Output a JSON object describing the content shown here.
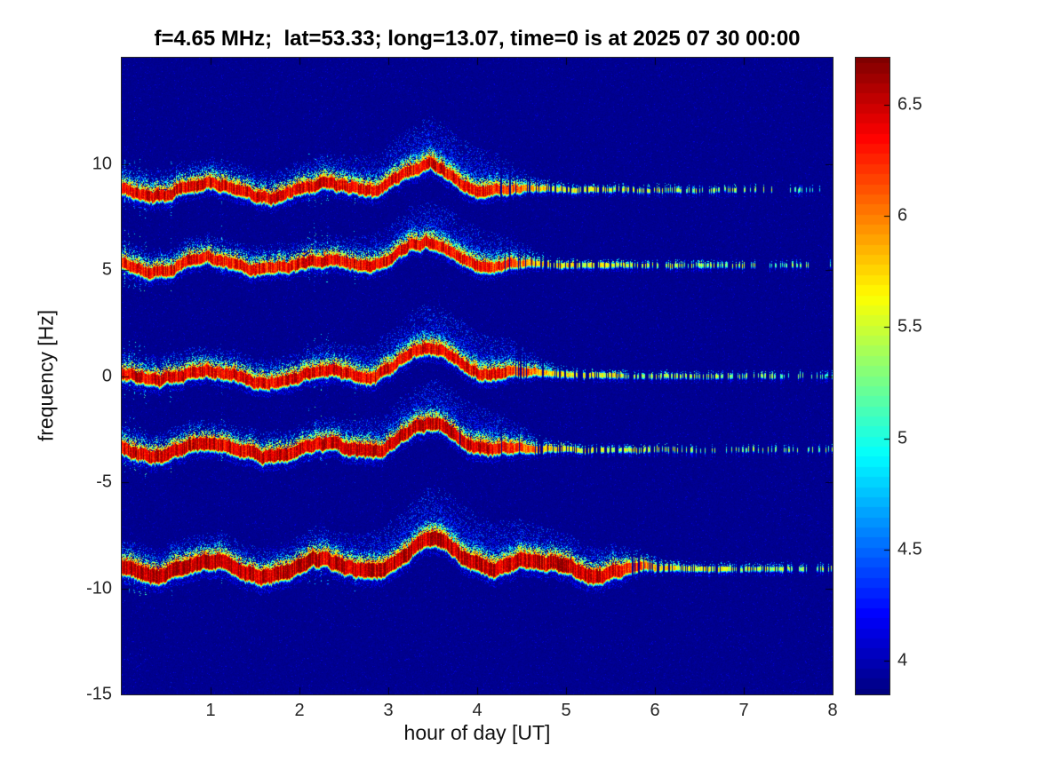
{
  "figure": {
    "background": "#ffffff"
  },
  "chart_data": {
    "type": "heatmap",
    "title": "f=4.65 MHz;  lat=53.33; long=13.07, time=0 is at 2025 07 30 00:00",
    "xlabel": "hour of day [UT]",
    "ylabel": "frequency [Hz]",
    "x_range": [
      0,
      8
    ],
    "y_range": [
      -15,
      15
    ],
    "x_ticks": [
      "1",
      "2",
      "3",
      "4",
      "5",
      "6",
      "7",
      "8"
    ],
    "y_ticks": [
      "10",
      "5",
      "0",
      "-5",
      "-10",
      "-15"
    ],
    "grid": false,
    "colormap": "jet",
    "background_value": 3.9,
    "colorbar": {
      "range": [
        3.85,
        6.71
      ],
      "ticks": [
        "4",
        "4.5",
        "5",
        "5.5",
        "6",
        "6.5"
      ]
    },
    "bands": [
      {
        "name": "band-plus9",
        "center_hz": 8.8,
        "osc_amp": 0.33,
        "bump_amp": 0.9,
        "bump_time": 3.38,
        "strong_until": 4.45,
        "peak_value": 6.5,
        "half_width_hz": 0.15,
        "cloud_hz": 1.7
      },
      {
        "name": "band-plus5",
        "center_hz": 5.25,
        "osc_amp": 0.3,
        "bump_amp": 0.85,
        "bump_time": 3.32,
        "strong_until": 4.5,
        "peak_value": 6.45,
        "half_width_hz": 0.14,
        "cloud_hz": 1.5
      },
      {
        "name": "band-zero",
        "center_hz": 0.05,
        "osc_amp": 0.3,
        "bump_amp": 1.0,
        "bump_time": 3.42,
        "strong_until": 4.6,
        "peak_value": 6.5,
        "half_width_hz": 0.15,
        "cloud_hz": 1.6
      },
      {
        "name": "band-minus3",
        "center_hz": -3.45,
        "osc_amp": 0.32,
        "bump_amp": 0.9,
        "bump_time": 3.45,
        "strong_until": 4.55,
        "peak_value": 6.55,
        "half_width_hz": 0.17,
        "cloud_hz": 1.6
      },
      {
        "name": "band-minus9",
        "center_hz": -9.05,
        "osc_amp": 0.38,
        "bump_amp": 0.95,
        "bump_time": 3.5,
        "strong_until": 5.8,
        "peak_value": 6.6,
        "half_width_hz": 0.22,
        "cloud_hz": 1.9
      }
    ],
    "streak_times": [
      0.03,
      0.08,
      0.14,
      0.2,
      0.26,
      0.55,
      1.12,
      2.1,
      2.17,
      2.24,
      2.31,
      2.62
    ],
    "axis_color": "#262626"
  }
}
